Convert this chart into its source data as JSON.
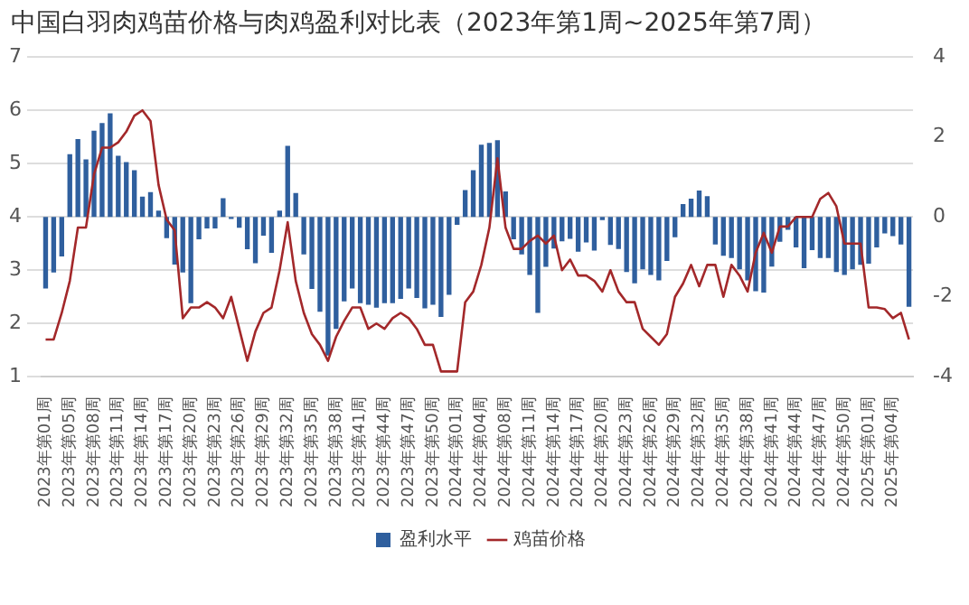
{
  "chart_data": {
    "type": "bar",
    "title": "中国白羽肉鸡苗价格与肉鸡盈利对比表（2023年第1周~2025年第7周）",
    "categories": [
      "2023年第01周",
      null,
      null,
      "2023年第05周",
      null,
      null,
      "2023年第08周",
      null,
      null,
      "2023年第11周",
      null,
      null,
      "2023年第14周",
      null,
      null,
      "2023年第17周",
      null,
      null,
      "2023年第20周",
      null,
      null,
      "2023年第23周",
      null,
      null,
      "2023年第26周",
      null,
      null,
      "2023年第29周",
      null,
      null,
      "2023年第32周",
      null,
      null,
      "2023年第35周",
      null,
      null,
      "2023年第38周",
      null,
      null,
      "2023年第41周",
      null,
      null,
      "2023年第44周",
      null,
      null,
      "2023年第47周",
      null,
      null,
      "2023年第50周",
      null,
      null,
      "2024年第01周",
      null,
      null,
      "2024年第04周",
      null,
      null,
      "2024年第08周",
      null,
      null,
      "2024年第11周",
      null,
      null,
      "2024年第14周",
      null,
      null,
      "2024年第17周",
      null,
      null,
      "2024年第20周",
      null,
      null,
      "2024年第23周",
      null,
      null,
      "2024年第26周",
      null,
      null,
      "2024年第29周",
      null,
      null,
      "2024年第32周",
      null,
      null,
      "2024年第35周",
      null,
      null,
      "2024年第38周",
      null,
      null,
      "2024年第41周",
      null,
      null,
      "2024年第44周",
      null,
      null,
      "2024年第47周",
      null,
      null,
      "2024年第50周",
      null,
      null,
      "2025年第01周",
      null,
      null,
      "2025年第04周",
      null,
      null
    ],
    "series": [
      {
        "name": "盈利水平",
        "axis": "y2",
        "color": "#2f5f9e",
        "values": [
          -1.79,
          -1.39,
          -0.99,
          1.57,
          1.95,
          1.44,
          2.16,
          2.35,
          2.59,
          1.53,
          1.37,
          1.17,
          0.51,
          0.62,
          0.16,
          -0.53,
          -1.19,
          -1.39,
          -2.16,
          -0.56,
          -0.29,
          -0.29,
          0.47,
          -0.05,
          -0.27,
          -0.81,
          -1.16,
          -0.47,
          -0.9,
          0.16,
          1.78,
          0.6,
          -0.94,
          -1.8,
          -2.37,
          -3.47,
          -2.8,
          -2.11,
          -1.79,
          -2.16,
          -2.2,
          -2.27,
          -2.16,
          -2.16,
          -2.05,
          -1.79,
          -2.03,
          -2.29,
          -2.2,
          -2.5,
          -1.95,
          -0.2,
          0.67,
          1.17,
          1.81,
          1.85,
          1.92,
          0.64,
          -0.56,
          -0.94,
          -1.45,
          -2.4,
          -1.25,
          -0.79,
          -0.61,
          -0.55,
          -0.87,
          -0.64,
          -0.84,
          -0.08,
          -0.7,
          -0.8,
          -1.38,
          -1.66,
          -1.31,
          -1.45,
          -1.59,
          -1.1,
          -0.51,
          0.32,
          0.46,
          0.66,
          0.52,
          -0.69,
          -0.97,
          -1.03,
          -1.31,
          -1.59,
          -1.86,
          -1.89,
          -1.24,
          -0.62,
          -0.32,
          -0.76,
          -1.28,
          -0.83,
          -1.03,
          -1.03,
          -1.38,
          -1.45,
          -1.31,
          -1.2,
          -1.17,
          -0.76,
          -0.41,
          -0.48,
          -0.69,
          -2.25
        ]
      },
      {
        "name": "鸡苗价格",
        "type": "line",
        "color": "#a3282a",
        "values": [
          1.7,
          1.7,
          2.2,
          2.8,
          3.8,
          3.8,
          4.8,
          5.3,
          5.3,
          5.4,
          5.6,
          5.9,
          6.0,
          5.8,
          4.6,
          3.95,
          3.75,
          2.1,
          2.3,
          2.3,
          2.4,
          2.3,
          2.1,
          2.5,
          1.9,
          1.3,
          1.85,
          2.2,
          2.3,
          3.0,
          3.9,
          2.8,
          2.2,
          1.8,
          1.6,
          1.3,
          1.75,
          2.05,
          2.3,
          2.3,
          1.9,
          2.0,
          1.9,
          2.1,
          2.2,
          2.1,
          1.9,
          1.6,
          1.6,
          1.1,
          1.1,
          1.1,
          2.4,
          2.6,
          3.1,
          3.8,
          5.1,
          3.8,
          3.4,
          3.4,
          3.55,
          3.65,
          3.5,
          3.65,
          3.0,
          3.2,
          2.9,
          2.9,
          2.8,
          2.6,
          3.0,
          2.6,
          2.4,
          2.4,
          1.9,
          1.75,
          1.6,
          1.8,
          2.5,
          2.75,
          3.1,
          2.7,
          3.1,
          3.1,
          2.5,
          3.1,
          2.9,
          2.6,
          3.33,
          3.7,
          3.33,
          3.82,
          3.82,
          4.0,
          4.0,
          4.0,
          4.34,
          4.45,
          4.2,
          3.5,
          3.5,
          3.5,
          2.3,
          2.3,
          2.27,
          2.1,
          2.2,
          1.7
        ]
      }
    ],
    "ylim": [
      1,
      7
    ],
    "yticks": [
      1,
      2,
      3,
      4,
      5,
      6,
      7
    ],
    "y2lim": [
      -4,
      4
    ],
    "y2ticks": [
      -4,
      -2,
      0,
      2,
      4
    ],
    "grid": "y",
    "legend": "bottom"
  }
}
